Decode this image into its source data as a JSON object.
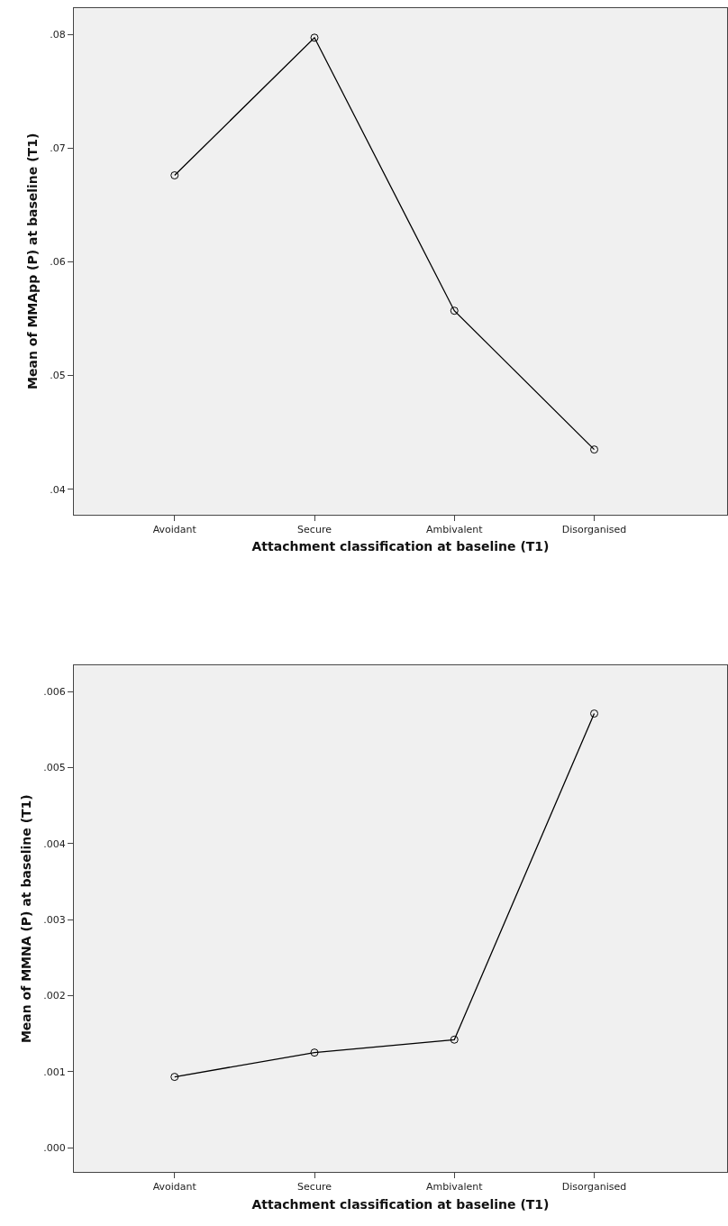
{
  "chart_data": [
    {
      "type": "line",
      "xlabel": "Attachment classification at baseline (T1)",
      "ylabel": "Mean of MMApp (P) at baseline (T1)",
      "categories": [
        "Avoidant",
        "Secure",
        "Ambivalent",
        "Disorganised"
      ],
      "series": [
        {
          "color": "#000000",
          "values": [
            0.0676,
            0.0797,
            0.0557,
            0.0435
          ]
        }
      ],
      "ylim": [
        0.0378,
        0.0823
      ],
      "yticks": [
        {
          "value": 0.04,
          "label": ".04"
        },
        {
          "value": 0.05,
          "label": ".05"
        },
        {
          "value": 0.06,
          "label": ".06"
        },
        {
          "value": 0.07,
          "label": ".07"
        },
        {
          "value": 0.08,
          "label": ".08"
        }
      ],
      "grid": false,
      "marker": "circle",
      "line_style": "solid"
    },
    {
      "type": "line",
      "xlabel": "Attachment classification at baseline (T1)",
      "ylabel": "Mean of MMNA (P) at baseline (T1)",
      "categories": [
        "Avoidant",
        "Secure",
        "Ambivalent",
        "Disorganised"
      ],
      "series": [
        {
          "color": "#000000",
          "values": [
            0.00093,
            0.00125,
            0.00142,
            0.00571
          ]
        }
      ],
      "ylim": [
        -0.00032,
        0.00634
      ],
      "yticks": [
        {
          "value": 0.0,
          "label": ".000"
        },
        {
          "value": 0.001,
          "label": ".001"
        },
        {
          "value": 0.002,
          "label": ".002"
        },
        {
          "value": 0.003,
          "label": ".003"
        },
        {
          "value": 0.004,
          "label": ".004"
        },
        {
          "value": 0.005,
          "label": ".005"
        },
        {
          "value": 0.006,
          "label": ".006"
        }
      ],
      "grid": false,
      "marker": "circle",
      "line_style": "solid"
    }
  ]
}
